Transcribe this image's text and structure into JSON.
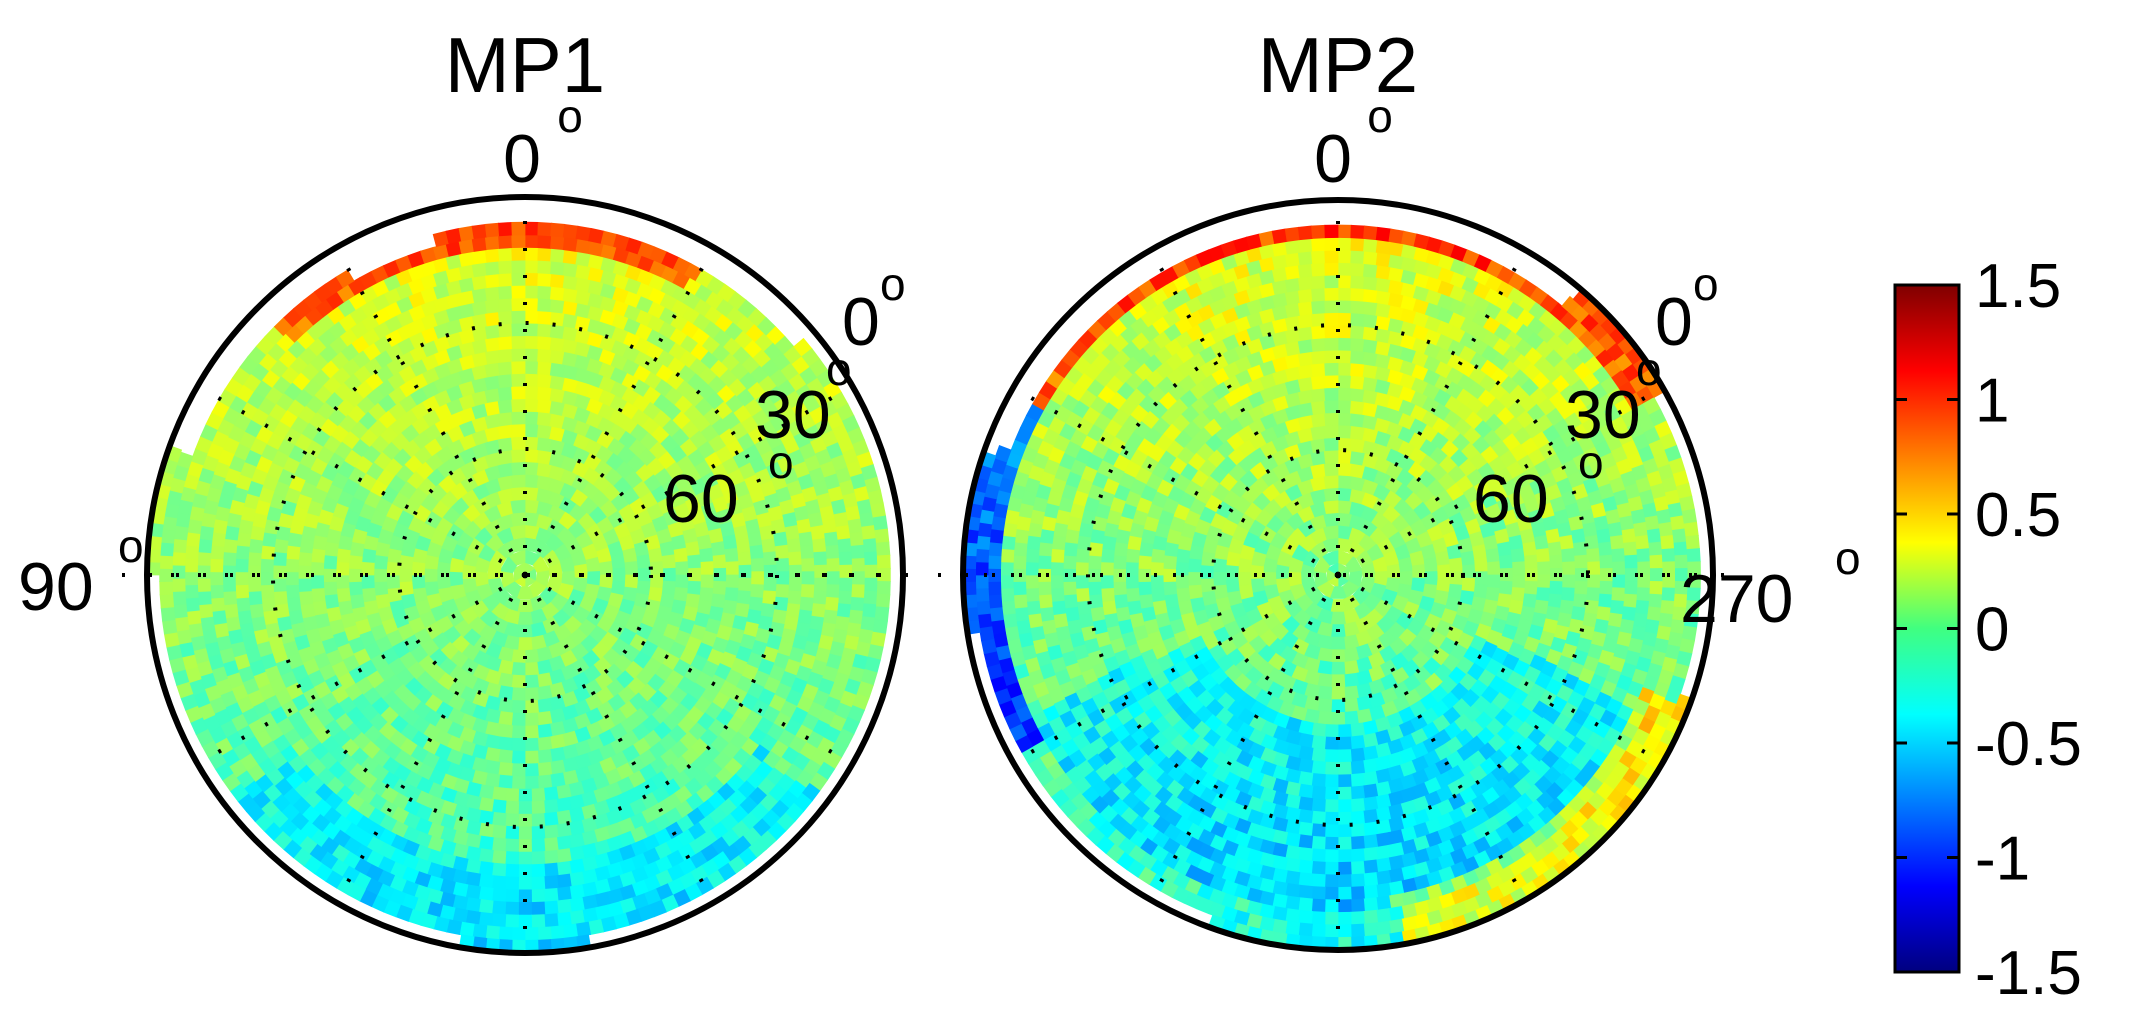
{
  "chart_data": [
    {
      "type": "heatmap",
      "projection": "polar-sky",
      "title": "MP1",
      "angle_labels": {
        "top": "0",
        "left": "90",
        "right": ""
      },
      "elevation_labels": [
        "0",
        "30",
        "60"
      ],
      "degree_symbol": "o",
      "grid": "dotted",
      "coverage": "partial disk, data missing near upper-left and right rim",
      "features": [
        {
          "region": "upper rim (azimuth 0-40, elevation 0-20)",
          "value": 0.9
        },
        {
          "region": "upper half interior",
          "value": 0.3
        },
        {
          "region": "center",
          "value": 0.05
        },
        {
          "region": "lower half interior",
          "value": 0.0
        },
        {
          "region": "bottom rim",
          "value": -0.3
        }
      ]
    },
    {
      "type": "heatmap",
      "projection": "polar-sky",
      "title": "MP2",
      "angle_labels": {
        "top": "0",
        "left": "",
        "right": "270"
      },
      "elevation_labels": [
        "0",
        "30",
        "60"
      ],
      "degree_symbol": "o",
      "grid": "dotted",
      "coverage": "partial disk, data missing near upper-left rim",
      "features": [
        {
          "region": "upper rim (azimuth 0-60)",
          "value": 1.0
        },
        {
          "region": "left rim low elevation",
          "value": -1.0
        },
        {
          "region": "upper half interior",
          "value": 0.35
        },
        {
          "region": "lower interior",
          "value": -0.35
        },
        {
          "region": "lower-right rim",
          "value": 0.8
        }
      ]
    }
  ],
  "colorbar": {
    "colormap": "jet",
    "min": -1.5,
    "max": 1.5,
    "ticks": [
      "1.5",
      "1",
      "0.5",
      "0",
      "-0.5",
      "-1",
      "-1.5"
    ],
    "tick_values": [
      1.5,
      1,
      0.5,
      0,
      -0.5,
      -1,
      -1.5
    ],
    "stops": [
      "#00007f",
      "#0000ff",
      "#007fff",
      "#00ffff",
      "#7fff7f",
      "#ffff00",
      "#ff7f00",
      "#ff0000",
      "#7f0000"
    ]
  }
}
